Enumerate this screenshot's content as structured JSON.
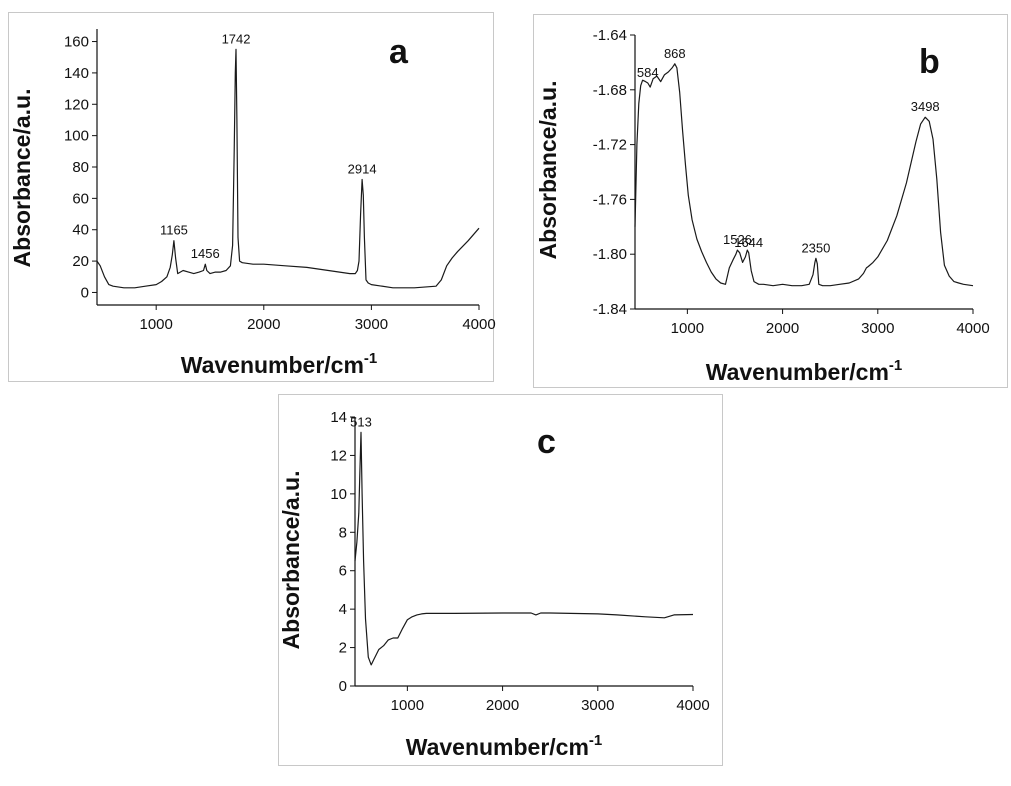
{
  "chart_data": [
    {
      "type": "line",
      "panel_label": "a",
      "xlabel": "Wavenumber/cm",
      "xlabel_sup": "-1",
      "ylabel": "Absorbance/a.u.",
      "xlim": [
        450,
        4000
      ],
      "ylim": [
        -8,
        168
      ],
      "xticks": [
        1000,
        2000,
        3000,
        4000
      ],
      "yticks": [
        0,
        20,
        40,
        60,
        80,
        100,
        120,
        140,
        160
      ],
      "series": [
        {
          "x": [
            450,
            480,
            520,
            560,
            600,
            700,
            800,
            900,
            1000,
            1050,
            1100,
            1130,
            1150,
            1165,
            1180,
            1200,
            1250,
            1300,
            1350,
            1400,
            1440,
            1456,
            1470,
            1500,
            1550,
            1600,
            1650,
            1690,
            1710,
            1725,
            1735,
            1742,
            1750,
            1760,
            1775,
            1800,
            1900,
            2000,
            2200,
            2400,
            2600,
            2800,
            2850,
            2870,
            2885,
            2900,
            2914,
            2925,
            2935,
            2950,
            2970,
            3000,
            3200,
            3400,
            3600,
            3650,
            3700,
            3750,
            3800,
            3900,
            4000
          ],
          "y": [
            20,
            17,
            10,
            5,
            4,
            3,
            3,
            4,
            5,
            7,
            10,
            16,
            24,
            33,
            22,
            12,
            14,
            13,
            12,
            13,
            14,
            18,
            14,
            12,
            13,
            13,
            14,
            17,
            30,
            90,
            140,
            155,
            110,
            35,
            20,
            19,
            18,
            18,
            17,
            16,
            14,
            12,
            12,
            14,
            20,
            50,
            72,
            62,
            35,
            8,
            6,
            5,
            3,
            3,
            4,
            8,
            17,
            22,
            26,
            33,
            41
          ]
        }
      ],
      "annotations": [
        {
          "text": "1165",
          "x": 1165,
          "y": 33
        },
        {
          "text": "1456",
          "x": 1456,
          "y": 18
        },
        {
          "text": "1742",
          "x": 1742,
          "y": 155
        },
        {
          "text": "2914",
          "x": 2914,
          "y": 72
        }
      ]
    },
    {
      "type": "line",
      "panel_label": "b",
      "xlabel": "Wavenumber/cm",
      "xlabel_sup": "-1",
      "ylabel": "Absorbance/a.u.",
      "xlim": [
        450,
        4000
      ],
      "ylim": [
        -1.84,
        -1.64
      ],
      "xticks": [
        1000,
        2000,
        3000,
        4000
      ],
      "yticks": [
        -1.84,
        -1.8,
        -1.76,
        -1.72,
        -1.68,
        -1.64
      ],
      "series": [
        {
          "x": [
            450,
            470,
            490,
            510,
            530,
            560,
            584,
            610,
            640,
            680,
            720,
            760,
            800,
            840,
            868,
            890,
            920,
            950,
            980,
            1010,
            1050,
            1100,
            1150,
            1200,
            1250,
            1300,
            1350,
            1400,
            1440,
            1480,
            1510,
            1526,
            1550,
            1580,
            1610,
            1630,
            1644,
            1670,
            1700,
            1750,
            1800,
            1900,
            2000,
            2100,
            2200,
            2280,
            2320,
            2340,
            2350,
            2365,
            2380,
            2420,
            2500,
            2600,
            2700,
            2800,
            2850,
            2880,
            2900,
            2950,
            3000,
            3100,
            3200,
            3300,
            3400,
            3450,
            3498,
            3540,
            3580,
            3620,
            3660,
            3700,
            3750,
            3800,
            3850,
            3900,
            4000
          ],
          "y": [
            -1.78,
            -1.72,
            -1.69,
            -1.677,
            -1.673,
            -1.674,
            -1.675,
            -1.678,
            -1.672,
            -1.67,
            -1.674,
            -1.669,
            -1.667,
            -1.664,
            -1.661,
            -1.664,
            -1.682,
            -1.71,
            -1.735,
            -1.757,
            -1.775,
            -1.789,
            -1.798,
            -1.806,
            -1.813,
            -1.818,
            -1.821,
            -1.822,
            -1.81,
            -1.804,
            -1.8,
            -1.797,
            -1.799,
            -1.806,
            -1.802,
            -1.797,
            -1.799,
            -1.812,
            -1.82,
            -1.822,
            -1.822,
            -1.823,
            -1.822,
            -1.823,
            -1.823,
            -1.822,
            -1.815,
            -1.806,
            -1.803,
            -1.807,
            -1.822,
            -1.823,
            -1.823,
            -1.822,
            -1.821,
            -1.818,
            -1.814,
            -1.81,
            -1.809,
            -1.806,
            -1.802,
            -1.79,
            -1.772,
            -1.748,
            -1.718,
            -1.705,
            -1.7,
            -1.703,
            -1.716,
            -1.745,
            -1.784,
            -1.808,
            -1.816,
            -1.82,
            -1.821,
            -1.822,
            -1.823
          ]
        }
      ],
      "annotations": [
        {
          "text": "584",
          "x": 584,
          "y": -1.675
        },
        {
          "text": "868",
          "x": 868,
          "y": -1.661
        },
        {
          "text": "1526",
          "x": 1526,
          "y": -1.797
        },
        {
          "text": "1644",
          "x": 1644,
          "y": -1.799
        },
        {
          "text": "2350",
          "x": 2350,
          "y": -1.803
        },
        {
          "text": "3498",
          "x": 3498,
          "y": -1.7
        }
      ]
    },
    {
      "type": "line",
      "panel_label": "c",
      "xlabel": "Wavenumber/cm",
      "xlabel_sup": "-1",
      "ylabel": "Absorbance/a.u.",
      "xlim": [
        450,
        4000
      ],
      "ylim": [
        0,
        14
      ],
      "xticks": [
        1000,
        2000,
        3000,
        4000
      ],
      "yticks": [
        0,
        2,
        4,
        6,
        8,
        10,
        12,
        14
      ],
      "series": [
        {
          "x": [
            450,
            470,
            490,
            500,
            513,
            525,
            540,
            560,
            590,
            620,
            650,
            700,
            750,
            800,
            850,
            900,
            950,
            1000,
            1050,
            1100,
            1150,
            1200,
            1500,
            2000,
            2300,
            2350,
            2400,
            2500,
            3000,
            3200,
            3500,
            3700,
            3800,
            4000
          ],
          "y": [
            6.5,
            7.5,
            9,
            11,
            13.2,
            10,
            6.5,
            3.5,
            1.5,
            1.1,
            1.4,
            1.9,
            2.1,
            2.4,
            2.5,
            2.5,
            3.0,
            3.45,
            3.6,
            3.7,
            3.75,
            3.78,
            3.78,
            3.8,
            3.8,
            3.7,
            3.8,
            3.8,
            3.75,
            3.7,
            3.6,
            3.55,
            3.7,
            3.72
          ]
        }
      ],
      "annotations": [
        {
          "text": "513",
          "x": 513,
          "y": 13.2
        }
      ]
    }
  ]
}
